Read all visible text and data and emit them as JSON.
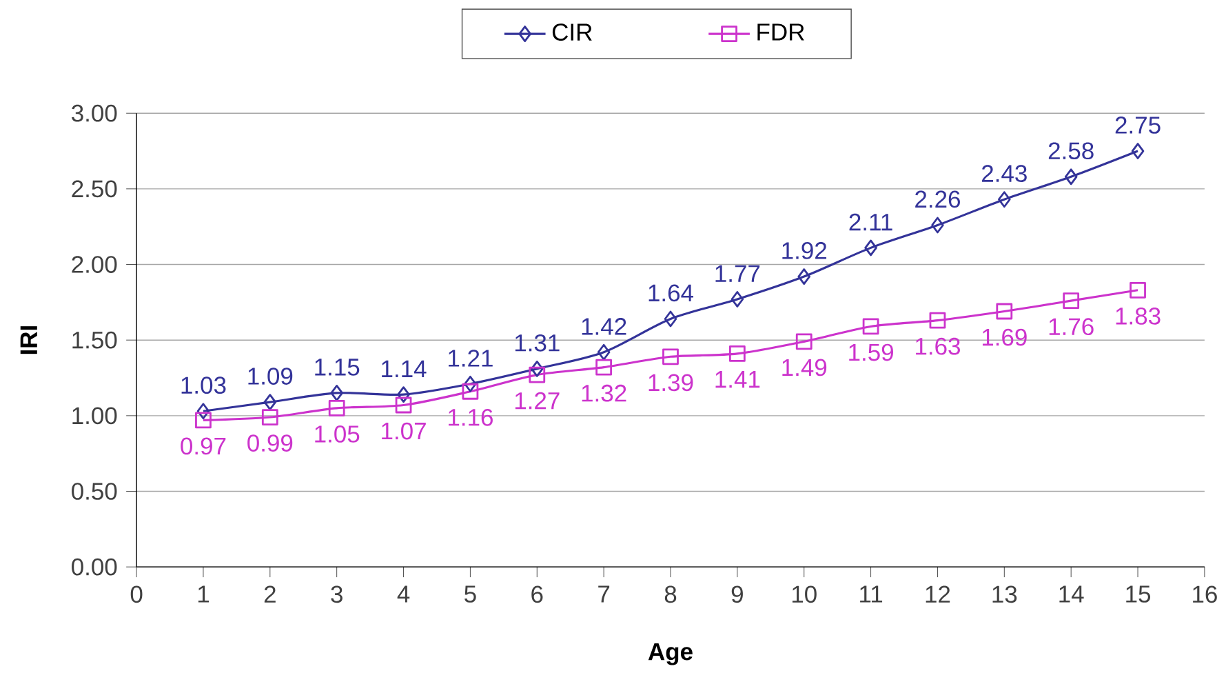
{
  "chart_data": {
    "type": "line",
    "xlabel": "Age",
    "ylabel": "IRI",
    "x": [
      1,
      2,
      3,
      4,
      5,
      6,
      7,
      8,
      9,
      10,
      11,
      12,
      13,
      14,
      15
    ],
    "series": [
      {
        "name": "CIR",
        "color": "#333399",
        "marker": "diamond",
        "values": [
          1.03,
          1.09,
          1.15,
          1.14,
          1.21,
          1.31,
          1.42,
          1.64,
          1.77,
          1.92,
          2.11,
          2.26,
          2.43,
          2.58,
          2.75
        ]
      },
      {
        "name": "FDR",
        "color": "#cc33cc",
        "marker": "square",
        "values": [
          0.97,
          0.99,
          1.05,
          1.07,
          1.16,
          1.27,
          1.32,
          1.39,
          1.41,
          1.49,
          1.59,
          1.63,
          1.69,
          1.76,
          1.83
        ]
      }
    ],
    "xlim": [
      0,
      16
    ],
    "xticks": [
      0,
      1,
      2,
      3,
      4,
      5,
      6,
      7,
      8,
      9,
      10,
      11,
      12,
      13,
      14,
      15,
      16
    ],
    "ylim": [
      0,
      3
    ],
    "yticks": [
      {
        "value": 0,
        "label": "0.00"
      },
      {
        "value": 0.5,
        "label": "0.50"
      },
      {
        "value": 1,
        "label": "1.00"
      },
      {
        "value": 1.5,
        "label": "1.50"
      },
      {
        "value": 2,
        "label": "2.00"
      },
      {
        "value": 2.5,
        "label": "2.50"
      },
      {
        "value": 3,
        "label": "3.00"
      }
    ],
    "grid": "y",
    "legend": "top",
    "data_labels": true,
    "line_style": "solid"
  }
}
